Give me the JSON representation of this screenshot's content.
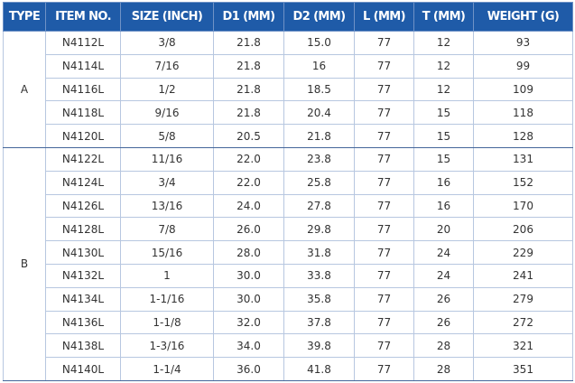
{
  "table": {
    "header": [
      "TYPE",
      "ITEM NO.",
      "SIZE (INCH)",
      "D1 (MM)",
      "D2 (MM)",
      "L (MM)",
      "T (MM)",
      "WEIGHT (G)"
    ],
    "groups": [
      {
        "type": "A",
        "rows": [
          [
            "N4112L",
            "3/8",
            "21.8",
            "15.0",
            "77",
            "12",
            "93"
          ],
          [
            "N4114L",
            "7/16",
            "21.8",
            "16",
            "77",
            "12",
            "99"
          ],
          [
            "N4116L",
            "1/2",
            "21.8",
            "18.5",
            "77",
            "12",
            "109"
          ],
          [
            "N4118L",
            "9/16",
            "21.8",
            "20.4",
            "77",
            "15",
            "118"
          ],
          [
            "N4120L",
            "5/8",
            "20.5",
            "21.8",
            "77",
            "15",
            "128"
          ]
        ]
      },
      {
        "type": "B",
        "rows": [
          [
            "N4122L",
            "11/16",
            "22.0",
            "23.8",
            "77",
            "15",
            "131"
          ],
          [
            "N4124L",
            "3/4",
            "22.0",
            "25.8",
            "77",
            "16",
            "152"
          ],
          [
            "N4126L",
            "13/16",
            "24.0",
            "27.8",
            "77",
            "16",
            "170"
          ],
          [
            "N4128L",
            "7/8",
            "26.0",
            "29.8",
            "77",
            "20",
            "206"
          ],
          [
            "N4130L",
            "15/16",
            "28.0",
            "31.8",
            "77",
            "24",
            "229"
          ],
          [
            "N4132L",
            "1",
            "30.0",
            "33.8",
            "77",
            "24",
            "241"
          ],
          [
            "N4134L",
            "1-1/16",
            "30.0",
            "35.8",
            "77",
            "26",
            "279"
          ],
          [
            "N4136L",
            "1-1/8",
            "32.0",
            "37.8",
            "77",
            "26",
            "272"
          ],
          [
            "N4138L",
            "1-3/16",
            "34.0",
            "39.8",
            "77",
            "28",
            "321"
          ],
          [
            "N4140L",
            "1-1/4",
            "36.0",
            "41.8",
            "77",
            "28",
            "351"
          ]
        ]
      }
    ]
  }
}
